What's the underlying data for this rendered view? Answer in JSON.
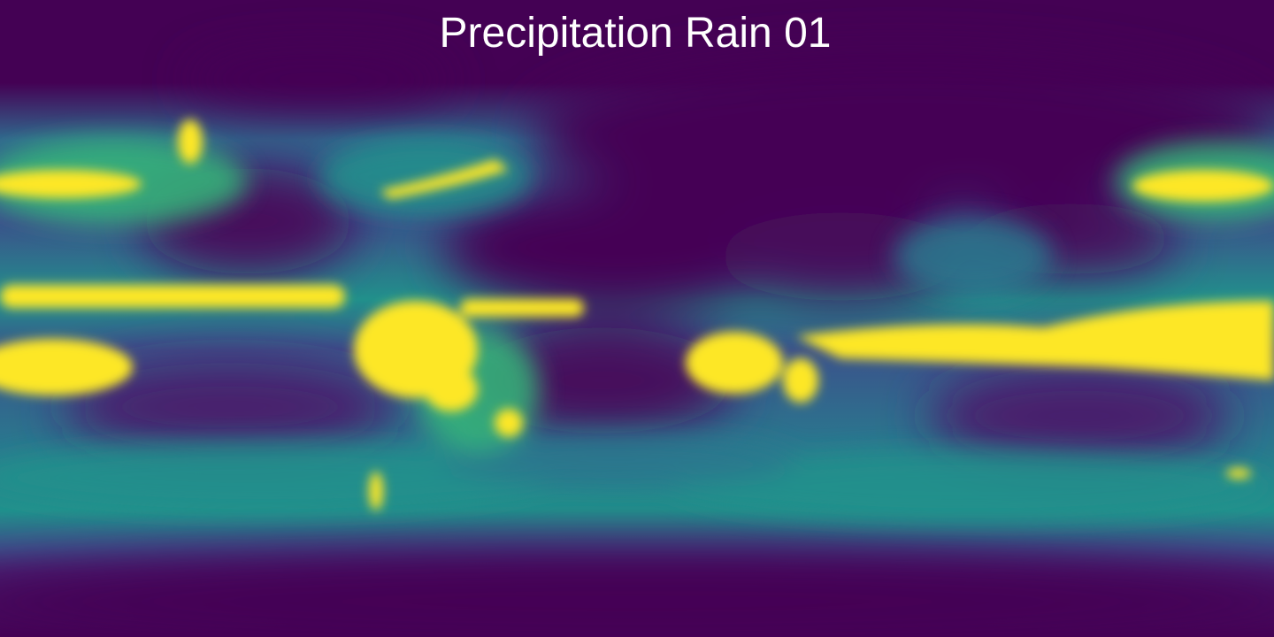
{
  "map": {
    "title": "Precipitation Rain 01",
    "colormap": "viridis",
    "colormap_stops": [
      "#440154",
      "#3b528b",
      "#21918c",
      "#5ec962",
      "#fde725"
    ],
    "background_color": "#440154",
    "projection": "equirectangular"
  }
}
